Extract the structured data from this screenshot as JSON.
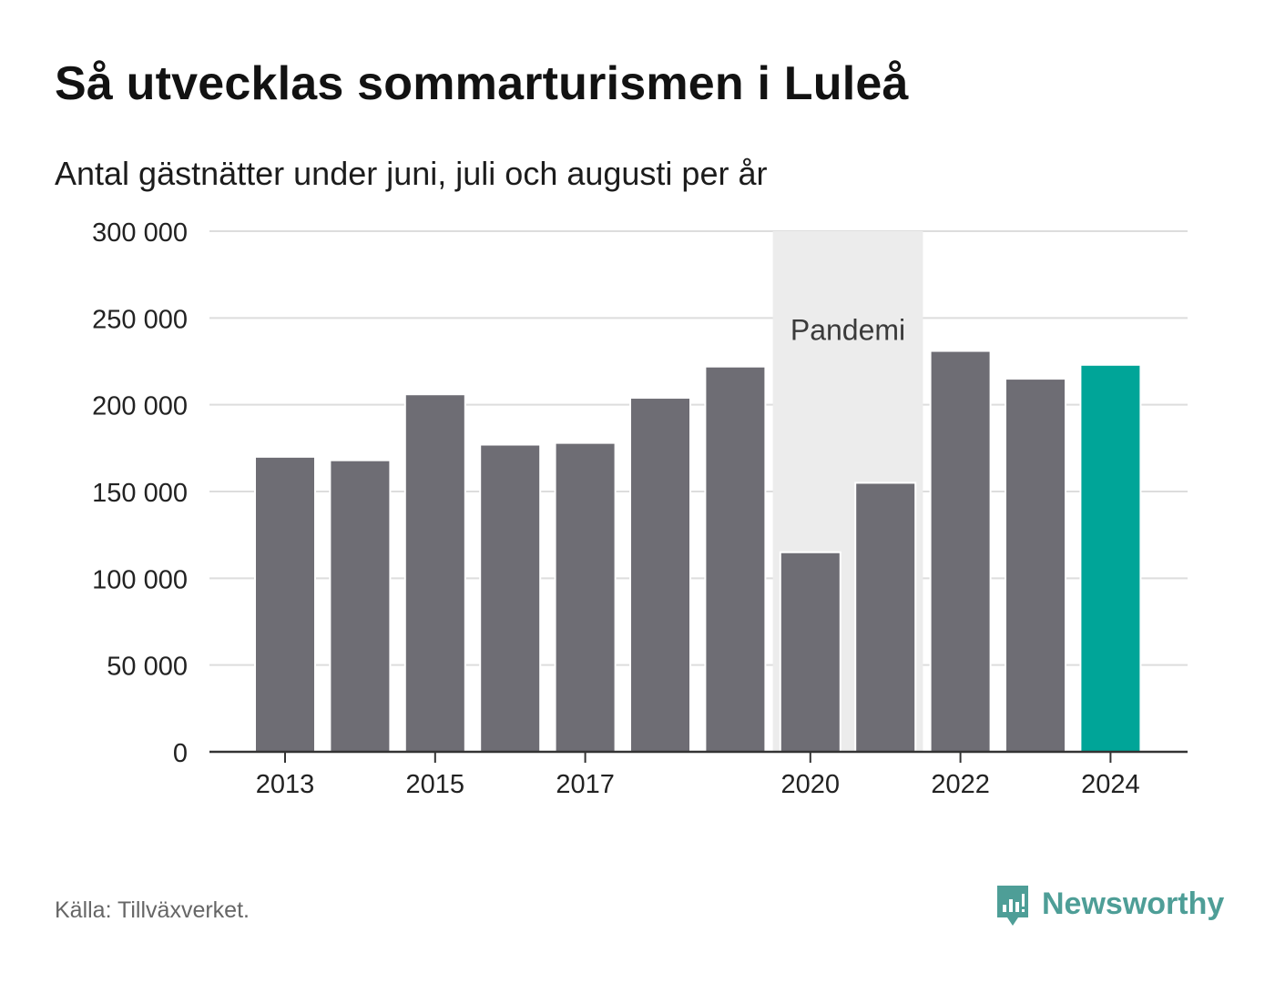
{
  "title": "Så utvecklas sommarturismen i Luleå",
  "subtitle": "Antal gästnätter under juni, juli och augusti per år",
  "source": "Källa: Tillväxverket.",
  "brand": {
    "name": "Newsworthy",
    "icon": "newsworthy-logo-icon"
  },
  "colors": {
    "bar": "#6e6d74",
    "highlight": "#00a598",
    "band": "#ececec",
    "grid": "#dddddd",
    "axis": "#333333",
    "brand": "#4e9e97"
  },
  "chart_data": {
    "type": "bar",
    "title": "Så utvecklas sommarturismen i Luleå",
    "subtitle": "Antal gästnätter under juni, juli och augusti per år",
    "xlabel": "",
    "ylabel": "",
    "categories": [
      "2013",
      "2014",
      "2015",
      "2016",
      "2017",
      "2018",
      "2019",
      "2020",
      "2021",
      "2022",
      "2023",
      "2024"
    ],
    "values": [
      170000,
      168000,
      206000,
      177000,
      178000,
      204000,
      222000,
      115000,
      155000,
      231000,
      215000,
      223000
    ],
    "highlight_category": "2024",
    "x_tick_labels": [
      "2013",
      "2015",
      "2017",
      "2020",
      "2022",
      "2024"
    ],
    "y_ticks": [
      0,
      50000,
      100000,
      150000,
      200000,
      250000,
      300000
    ],
    "y_tick_labels": [
      "0",
      "50 000",
      "100 000",
      "150 000",
      "200 000",
      "250 000",
      "300 000"
    ],
    "ylim": [
      0,
      300000
    ],
    "grid": true,
    "annotations": [
      {
        "text": "Pandemi",
        "x_start": "2020",
        "x_end": "2021"
      }
    ]
  }
}
